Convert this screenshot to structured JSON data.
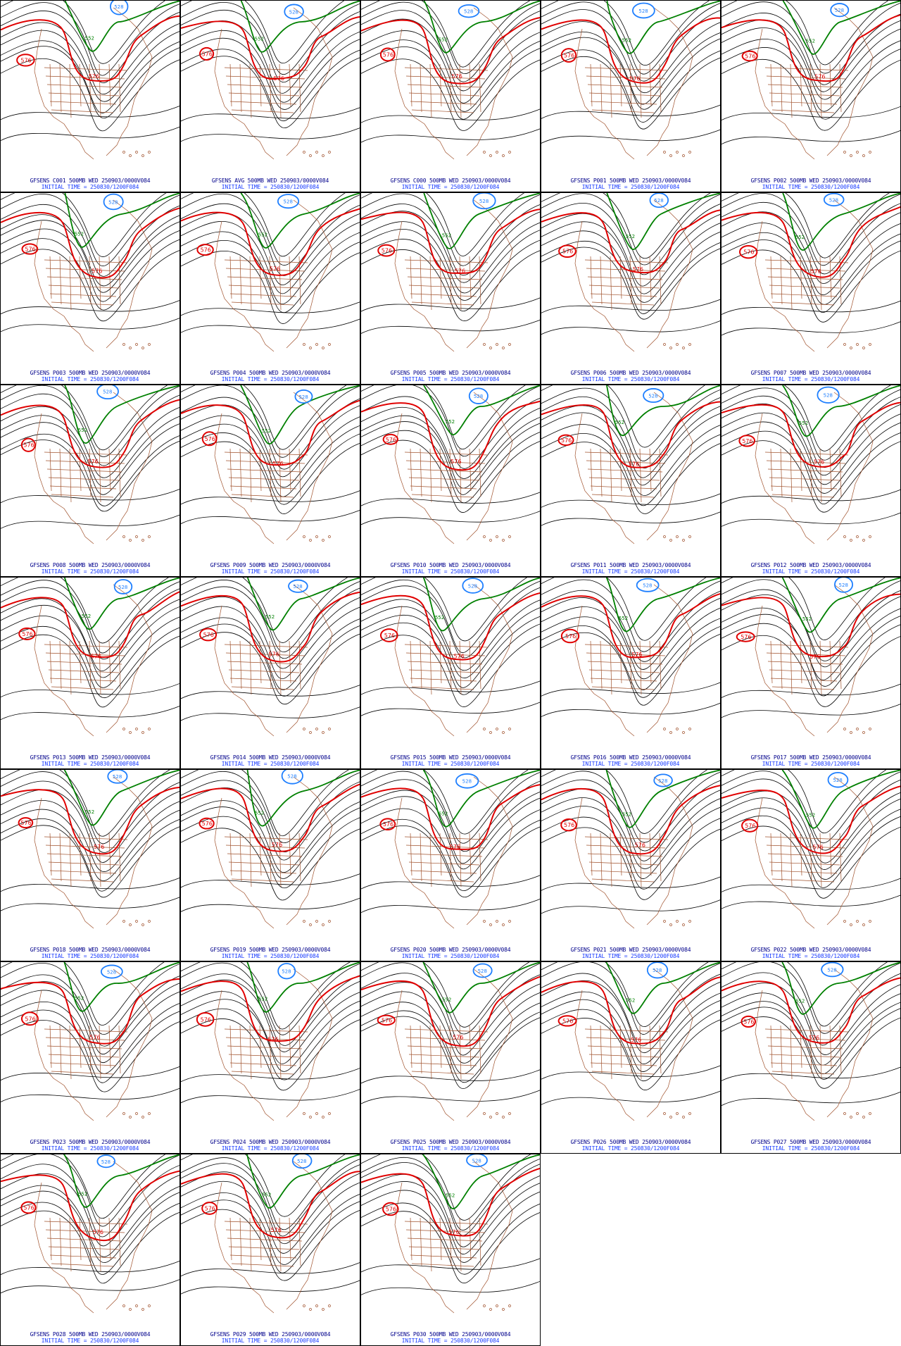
{
  "panels": [
    {
      "member": "C001",
      "line1": "GFSENS C001 500MB WED 250903/0000V084",
      "line2": "INITIAL TIME = 250830/1200F084"
    },
    {
      "member": "AVG",
      "line1": "GFSENS AVG 500MB WED 250903/0000V084",
      "line2": "INITIAL TIME = 250830/1200F084"
    },
    {
      "member": "C000",
      "line1": "GFSENS C000 500MB WED 250903/0000V084",
      "line2": "INITIAL TIME = 250830/1200F084"
    },
    {
      "member": "P001",
      "line1": "GFSENS P001 500MB WED 250903/0000V084",
      "line2": "INITIAL TIME = 250830/1200F084"
    },
    {
      "member": "P002",
      "line1": "GFSENS P002 500MB WED 250903/0000V084",
      "line2": "INITIAL TIME = 250830/1200F084"
    },
    {
      "member": "P003",
      "line1": "GFSENS P003 500MB WED 250903/0000V084",
      "line2": "INITIAL TIME = 250830/1200F084"
    },
    {
      "member": "P004",
      "line1": "GFSENS P004 500MB WED 250903/0000V084",
      "line2": "INITIAL TIME = 250830/1200F084"
    },
    {
      "member": "P005",
      "line1": "GFSENS P005 500MB WED 250903/0000V084",
      "line2": "INITIAL TIME = 250830/1200F084"
    },
    {
      "member": "P006",
      "line1": "GFSENS P006 500MB WED 250903/0000V084",
      "line2": "INITIAL TIME = 250830/1200F084"
    },
    {
      "member": "P007",
      "line1": "GFSENS P007 500MB WED 250903/0000V084",
      "line2": "INITIAL TIME = 250830/1200F084"
    },
    {
      "member": "P008",
      "line1": "GFSENS P008 500MB WED 250903/0000V084",
      "line2": "INITIAL TIME = 250830/1200F084"
    },
    {
      "member": "P009",
      "line1": "GFSENS P009 500MB WED 250903/0000V084",
      "line2": "INITIAL TIME = 250830/1200F084"
    },
    {
      "member": "P010",
      "line1": "GFSENS P010 500MB WED 250903/0000V084",
      "line2": "INITIAL TIME = 250830/1200F084"
    },
    {
      "member": "P011",
      "line1": "GFSENS P011 500MB WED 250903/0000V084",
      "line2": "INITIAL TIME = 250830/1200F084"
    },
    {
      "member": "P012",
      "line1": "GFSENS P012 500MB WED 250903/0000V084",
      "line2": "INITIAL TIME = 250830/1200F084"
    },
    {
      "member": "P013",
      "line1": "GFSENS P013 500MB WED 250903/0000V084",
      "line2": "INITIAL TIME = 250830/1200F084"
    },
    {
      "member": "P014",
      "line1": "GFSENS P014 500MB WED 250903/0000V084",
      "line2": "INITIAL TIME = 250830/1200F084"
    },
    {
      "member": "P015",
      "line1": "GFSENS P015 500MB WED 250903/0000V084",
      "line2": "INITIAL TIME = 250830/1200F084"
    },
    {
      "member": "P016",
      "line1": "GFSENS P016 500MB WED 250903/0000V084",
      "line2": "INITIAL TIME = 250830/1200F084"
    },
    {
      "member": "P017",
      "line1": "GFSENS P017 500MB WED 250903/0000V084",
      "line2": "INITIAL TIME = 250830/1200F084"
    },
    {
      "member": "P018",
      "line1": "GFSENS P018 500MB WED 250903/0000V084",
      "line2": "INITIAL TIME = 250830/1200F084"
    },
    {
      "member": "P019",
      "line1": "GFSENS P019 500MB WED 250903/0000V084",
      "line2": "INITIAL TIME = 250830/1200F084"
    },
    {
      "member": "P020",
      "line1": "GFSENS P020 500MB WED 250903/0000V084",
      "line2": "INITIAL TIME = 250830/1200F084"
    },
    {
      "member": "P021",
      "line1": "GFSENS P021 500MB WED 250903/0000V084",
      "line2": "INITIAL TIME = 250830/1200F084"
    },
    {
      "member": "P022",
      "line1": "GFSENS P022 500MB WED 250903/0000V084",
      "line2": "INITIAL TIME = 250830/1200F084"
    },
    {
      "member": "P023",
      "line1": "GFSENS P023 500MB WED 250903/0000V084",
      "line2": "INITIAL TIME = 250830/1200F084"
    },
    {
      "member": "P024",
      "line1": "GFSENS P024 500MB WED 250903/0000V084",
      "line2": "INITIAL TIME = 250830/1200F084"
    },
    {
      "member": "P025",
      "line1": "GFSENS P025 500MB WED 250903/0000V084",
      "line2": "INITIAL TIME = 250830/1200F084"
    },
    {
      "member": "P026",
      "line1": "GFSENS P026 500MB WED 250903/0000V084",
      "line2": "INITIAL TIME = 250830/1200F084"
    },
    {
      "member": "P027",
      "line1": "GFSENS P027 500MB WED 250903/0000V084",
      "line2": "INITIAL TIME = 250830/1200F084"
    },
    {
      "member": "P028",
      "line1": "GFSENS P028 500MB WED 250903/0000V084",
      "line2": "INITIAL TIME = 250830/1200F084"
    },
    {
      "member": "P029",
      "line1": "GFSENS P029 500MB WED 250903/0000V084",
      "line2": "INITIAL TIME = 250830/1200F084"
    },
    {
      "member": "P030",
      "line1": "GFSENS P030 500MB WED 250903/0000V084",
      "line2": "INITIAL TIME = 250830/1200F084"
    }
  ],
  "contour_labels": {
    "high": "576",
    "trough": "552",
    "low": "528"
  },
  "colors": {
    "contour": "#000000",
    "high_contour": "#e00000",
    "trough_contour": "#008000",
    "low_contour": "#1e7fff",
    "map_lines": "#a0522d",
    "caption_line1": "#00008b",
    "caption_line2": "#1a3cff"
  }
}
